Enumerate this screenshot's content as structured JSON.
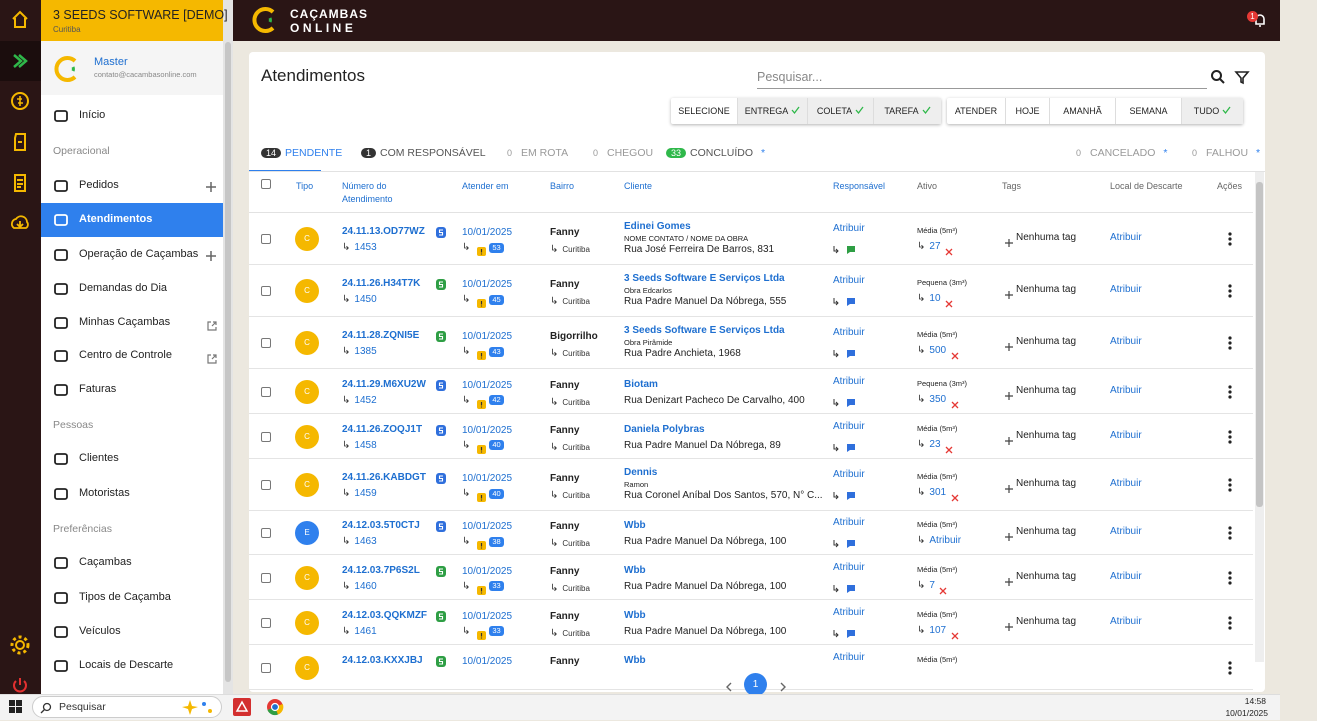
{
  "sidebar": {
    "company": "3 SEEDS SOFTWARE [DEMO]",
    "city": "Curitiba",
    "user": "Master",
    "email": "contato@cacambasonline.com",
    "sections": [
      {
        "items": [
          "Início"
        ]
      },
      {
        "title": "Operacional",
        "items": [
          "Pedidos",
          "Atendimentos",
          "Operação de Caçambas",
          "Demandas do Dia",
          "Minhas Caçambas",
          "Centro de Controle",
          "Faturas"
        ]
      },
      {
        "title": "Pessoas",
        "items": [
          "Clientes",
          "Motoristas"
        ]
      },
      {
        "title": "Preferências",
        "items": [
          "Caçambas",
          "Tipos de Caçamba",
          "Veículos",
          "Locais de Descarte"
        ]
      }
    ]
  },
  "header": {
    "brand_top": "CAÇAMBAS",
    "brand_bottom": "ONLINE",
    "notifications": "1"
  },
  "page": {
    "title": "Atendimentos",
    "search_placeholder": "Pesquisar...",
    "filters_type": [
      {
        "label": "SELECIONE"
      },
      {
        "label": "ENTREGA",
        "checked": true
      },
      {
        "label": "COLETA",
        "checked": true
      },
      {
        "label": "TAREFA",
        "checked": true
      }
    ],
    "filters_date": [
      {
        "label": "ATENDER"
      },
      {
        "label": "HOJE"
      },
      {
        "label": "AMANHÃ"
      },
      {
        "label": "SEMANA"
      },
      {
        "label": "TUDO",
        "checked": true
      }
    ],
    "tabs": [
      {
        "count": "14",
        "label": "PENDENTE"
      },
      {
        "count": "1",
        "label": "COM RESPONSÁVEL"
      },
      {
        "count": "0",
        "label": "EM ROTA"
      },
      {
        "count": "0",
        "label": "CHEGOU"
      },
      {
        "count": "33",
        "label": "CONCLUÍDO",
        "marker": "*"
      },
      {
        "count": "0",
        "label": "CANCELADO",
        "marker": "*"
      },
      {
        "count": "0",
        "label": "FALHOU",
        "marker": "*"
      }
    ],
    "columns": [
      "Tipo",
      "Número do Atendimento",
      "Atender em",
      "Bairro",
      "Cliente",
      "Responsável",
      "Ativo",
      "Tags",
      "Local de Descarte",
      "Ações"
    ],
    "rows": [
      {
        "type": "C",
        "code": "24.11.13.OD77WZ",
        "badge_color": "#2f6fdc",
        "id": "1453",
        "date": "10/01/2025",
        "days": "53",
        "bairro": "Fanny",
        "city": "Curitiba",
        "client": "Edinei Gomes",
        "contact": "NOME CONTATO / NOME DA OBRA",
        "address": "Rua José Ferreira De Barros, 831",
        "resp": "Atribuir",
        "chat_color": "#2e9e44",
        "asset": "Média (5m³)",
        "asset_id": "27",
        "tag": "Nenhuma tag",
        "local": "Atribuir"
      },
      {
        "type": "C",
        "code": "24.11.26.H34T7K",
        "badge_color": "#2e9e44",
        "id": "1450",
        "date": "10/01/2025",
        "days": "45",
        "bairro": "Fanny",
        "city": "Curitiba",
        "client": "3 Seeds Software E Serviços Ltda",
        "contact": "Obra Edcarlos",
        "address": "Rua Padre Manuel Da Nóbrega, 555",
        "resp": "Atribuir",
        "chat_color": "#2f6fdc",
        "asset": "Pequena (3m³)",
        "asset_id": "10",
        "tag": "Nenhuma tag",
        "local": "Atribuir"
      },
      {
        "type": "C",
        "code": "24.11.28.ZQNI5E",
        "badge_color": "#2e9e44",
        "id": "1385",
        "date": "10/01/2025",
        "days": "43",
        "bairro": "Bigorrilho",
        "city": "Curitiba",
        "client": "3 Seeds Software E Serviços Ltda",
        "contact": "Obra Pirâmide",
        "address": "Rua Padre Anchieta, 1968",
        "resp": "Atribuir",
        "chat_color": "#2f6fdc",
        "asset": "Média (5m³)",
        "asset_id": "500",
        "tag": "Nenhuma tag",
        "local": "Atribuir"
      },
      {
        "type": "C",
        "code": "24.11.29.M6XU2W",
        "badge_color": "#2f6fdc",
        "id": "1452",
        "date": "10/01/2025",
        "days": "42",
        "bairro": "Fanny",
        "city": "Curitiba",
        "client": "Biotam",
        "address": "Rua Denizart Pacheco De Carvalho, 400",
        "resp": "Atribuir",
        "chat_color": "#2f6fdc",
        "asset": "Pequena (3m³)",
        "asset_id": "350",
        "tag": "Nenhuma tag",
        "local": "Atribuir"
      },
      {
        "type": "C",
        "code": "24.11.26.ZOQJ1T",
        "badge_color": "#2f6fdc",
        "id": "1458",
        "date": "10/01/2025",
        "days": "40",
        "bairro": "Fanny",
        "city": "Curitiba",
        "client": "Daniela Polybras",
        "address": "Rua Padre Manuel Da Nóbrega, 89",
        "resp": "Atribuir",
        "chat_color": "#2f6fdc",
        "asset": "Média (5m³)",
        "asset_id": "23",
        "tag": "Nenhuma tag",
        "local": "Atribuir"
      },
      {
        "type": "C",
        "code": "24.11.26.KABDGT",
        "badge_color": "#2f6fdc",
        "id": "1459",
        "date": "10/01/2025",
        "days": "40",
        "bairro": "Fanny",
        "city": "Curitiba",
        "client": "Dennis",
        "contact": "Ramon",
        "address": "Rua Coronel Aníbal Dos Santos, 570, N° C...",
        "resp": "Atribuir",
        "chat_color": "#2f6fdc",
        "asset": "Média (5m³)",
        "asset_id": "301",
        "tag": "Nenhuma tag",
        "local": "Atribuir"
      },
      {
        "type": "E",
        "code": "24.12.03.5T0CTJ",
        "badge_color": "#2f6fdc",
        "id": "1463",
        "date": "10/01/2025",
        "days": "38",
        "bairro": "Fanny",
        "city": "Curitiba",
        "client": "Wbb",
        "address": "Rua Padre Manuel Da Nóbrega, 100",
        "resp": "Atribuir",
        "chat_color": "#2f6fdc",
        "asset": "Média (5m³)",
        "asset_assign": "Atribuir",
        "tag": "Nenhuma tag",
        "local": "Atribuir"
      },
      {
        "type": "C",
        "code": "24.12.03.7P6S2L",
        "badge_color": "#2e9e44",
        "id": "1460",
        "date": "10/01/2025",
        "days": "33",
        "bairro": "Fanny",
        "city": "Curitiba",
        "client": "Wbb",
        "address": "Rua Padre Manuel Da Nóbrega, 100",
        "resp": "Atribuir",
        "chat_color": "#2f6fdc",
        "asset": "Média (5m³)",
        "asset_id": "7",
        "tag": "Nenhuma tag",
        "local": "Atribuir"
      },
      {
        "type": "C",
        "code": "24.12.03.QQKMZF",
        "badge_color": "#2e9e44",
        "id": "1461",
        "date": "10/01/2025",
        "days": "33",
        "bairro": "Fanny",
        "city": "Curitiba",
        "client": "Wbb",
        "address": "Rua Padre Manuel Da Nóbrega, 100",
        "resp": "Atribuir",
        "chat_color": "#2f6fdc",
        "asset": "Média (5m³)",
        "asset_id": "107",
        "tag": "Nenhuma tag",
        "local": "Atribuir"
      },
      {
        "type": "C",
        "code": "24.12.03.KXXJBJ",
        "badge_color": "#2e9e44",
        "date": "10/01/2025",
        "bairro": "Fanny",
        "client": "Wbb",
        "resp": "Atribuir",
        "asset": "Média (5m³)"
      }
    ],
    "current_page": "1"
  },
  "taskbar": {
    "search": "Pesquisar",
    "time": "14:58",
    "date": "10/01/2025"
  }
}
